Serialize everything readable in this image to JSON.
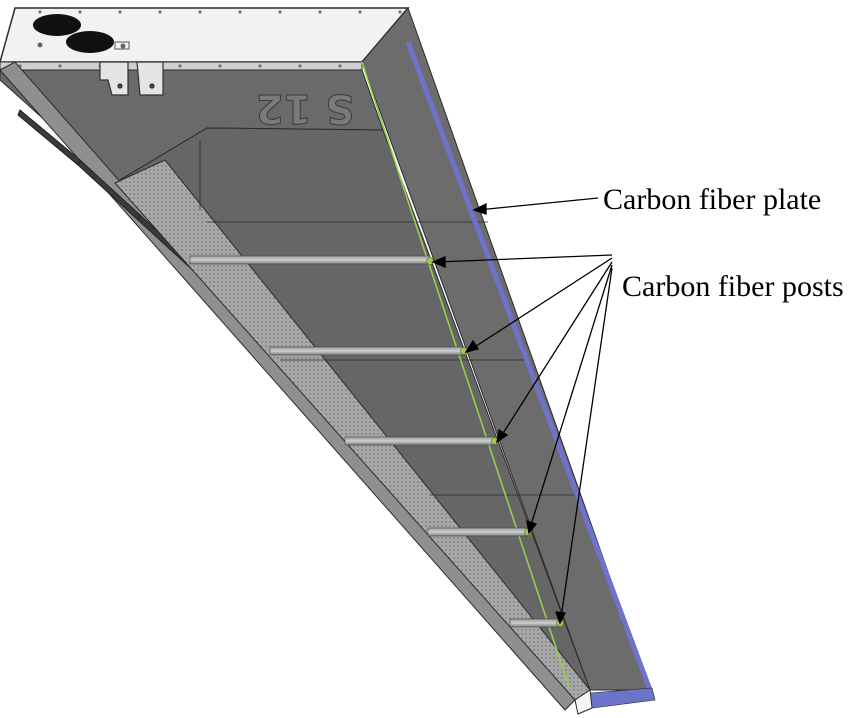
{
  "labels": {
    "plate": "Carbon fiber plate",
    "posts": "Carbon fiber posts"
  },
  "engraving": "S 12",
  "colors": {
    "background": "#ffffff",
    "panel_gray": "#6b6b6b",
    "panel_dark": "#555555",
    "outline": "#2b2b2b",
    "plate_edge": "#6b74c8",
    "post_highlight": "#9ccc4a",
    "mesh": "#9a9a9a"
  }
}
